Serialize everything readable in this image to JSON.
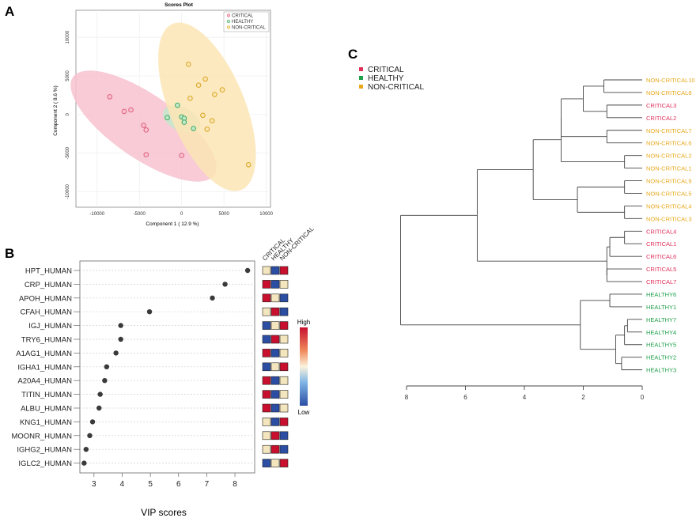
{
  "panel_labels": {
    "a": "A",
    "b": "B",
    "c": "C"
  },
  "chart_data": [
    {
      "panel": "A",
      "type": "scatter",
      "title": "Scores Plot",
      "xlabel": "Component 1 ( 12.9 %)",
      "ylabel": "Component 2 ( 8.6 %)",
      "xlim": [
        -12500,
        10500
      ],
      "ylim": [
        -12000,
        13500
      ],
      "xticks": [
        -10000,
        -5000,
        0,
        5000,
        10000
      ],
      "xtick_labels": [
        "-10000",
        "-5000",
        "0",
        "5000",
        "10000"
      ],
      "yticks": [
        -10000,
        -5000,
        0,
        5000,
        10000
      ],
      "ytick_labels": [
        "-10000",
        "-5000",
        "0",
        "5000",
        "10000"
      ],
      "legend_position": "top-right",
      "series": [
        {
          "name": "CRITICAL",
          "color": "#e0607e",
          "fill": "#f7c2cf",
          "points": [
            [
              -8500,
              2300
            ],
            [
              -6000,
              600
            ],
            [
              -6800,
              400
            ],
            [
              -4500,
              -1400
            ],
            [
              -4200,
              -2000
            ],
            [
              -4200,
              -5200
            ],
            [
              0,
              -5300
            ]
          ],
          "ellipse": {
            "center": [
              -4500,
              -1500
            ],
            "semi_major": 10500,
            "semi_minor": 4000,
            "angle_deg": -38
          }
        },
        {
          "name": "HEALTHY",
          "color": "#3daa5e",
          "fill": "#c4e8cd",
          "points": [
            [
              -500,
              1200
            ],
            [
              -1700,
              -400
            ],
            [
              0,
              -300
            ],
            [
              300,
              -500
            ],
            [
              300,
              -1000
            ],
            [
              1400,
              -1800
            ]
          ],
          "ellipse": {
            "center": [
              0,
              -600
            ],
            "semi_major": 2400,
            "semi_minor": 1500,
            "angle_deg": -30
          }
        },
        {
          "name": "NON-CRITICAL",
          "color": "#d9a520",
          "fill": "#fbe5b4",
          "points": [
            [
              800,
              6500
            ],
            [
              2800,
              4600
            ],
            [
              2000,
              3800
            ],
            [
              4800,
              3200
            ],
            [
              3900,
              2600
            ],
            [
              1000,
              2100
            ],
            [
              3600,
              -800
            ],
            [
              2500,
              -100
            ],
            [
              3000,
              -1900
            ],
            [
              7900,
              -6500
            ]
          ],
          "ellipse": {
            "center": [
              3000,
              1000
            ],
            "semi_major": 11500,
            "semi_minor": 4500,
            "angle_deg": -70
          }
        }
      ]
    },
    {
      "panel": "B",
      "type": "scatter",
      "xlabel": "VIP scores",
      "xlim": [
        2.5,
        8.7
      ],
      "xticks": [
        3,
        4,
        5,
        6,
        7,
        8
      ],
      "xtick_labels": [
        "3",
        "4",
        "5",
        "6",
        "7",
        "8"
      ],
      "categories": [
        "HPT_HUMAN",
        "CRP_HUMAN",
        "APOH_HUMAN",
        "CFAH_HUMAN",
        "IGJ_HUMAN",
        "TRY6_HUMAN",
        "A1AG1_HUMAN",
        "IGHA1_HUMAN",
        "A20A4_HUMAN",
        "TITIN_HUMAN",
        "ALBU_HUMAN",
        "KNG1_HUMAN",
        "MOONR_HUMAN",
        "IGHG2_HUMAN",
        "IGLC2_HUMAN"
      ],
      "values": [
        8.45,
        7.65,
        7.2,
        4.97,
        3.95,
        3.95,
        3.78,
        3.45,
        3.38,
        3.22,
        3.18,
        2.95,
        2.85,
        2.72,
        2.65
      ],
      "heatmap_columns": [
        "CRITICAL",
        "HEALTHY",
        "NON-CRITICAL"
      ],
      "heatmap": [
        [
          "mid",
          "low",
          "high"
        ],
        [
          "high",
          "low",
          "mid"
        ],
        [
          "high",
          "mid",
          "low"
        ],
        [
          "mid",
          "high",
          "low"
        ],
        [
          "low",
          "mid",
          "high"
        ],
        [
          "low",
          "high",
          "mid"
        ],
        [
          "high",
          "low",
          "mid"
        ],
        [
          "low",
          "mid",
          "high"
        ],
        [
          "high",
          "low",
          "mid"
        ],
        [
          "high",
          "low",
          "mid"
        ],
        [
          "high",
          "low",
          "mid"
        ],
        [
          "mid",
          "low",
          "high"
        ],
        [
          "mid",
          "high",
          "low"
        ],
        [
          "mid",
          "high",
          "low"
        ],
        [
          "low",
          "mid",
          "high"
        ]
      ],
      "colorscale": {
        "title": "High",
        "low_label": "Low",
        "low": "#2b4ea3",
        "mid": "#f3e5bd",
        "high": "#c8102e"
      }
    },
    {
      "panel": "C",
      "type": "dendrogram",
      "legend": [
        {
          "name": "CRITICAL",
          "color": "#e0305a"
        },
        {
          "name": "HEALTHY",
          "color": "#1ea04a"
        },
        {
          "name": "NON-CRITICAL",
          "color": "#e8a81c"
        }
      ],
      "xlim": [
        8,
        0
      ],
      "xticks": [
        8,
        6,
        4,
        2,
        0
      ],
      "xtick_labels": [
        "8",
        "6",
        "4",
        "2",
        "0"
      ],
      "leaves": [
        {
          "label": "NON-CRITICAL10",
          "group": "NON-CRITICAL"
        },
        {
          "label": "NON-CRITICAL8",
          "group": "NON-CRITICAL"
        },
        {
          "label": "CRITICAL3",
          "group": "CRITICAL"
        },
        {
          "label": "CRITICAL2",
          "group": "CRITICAL"
        },
        {
          "label": "NON-CRITICAL7",
          "group": "NON-CRITICAL"
        },
        {
          "label": "NON-CRITICAL6",
          "group": "NON-CRITICAL"
        },
        {
          "label": "NON-CRITICAL2",
          "group": "NON-CRITICAL"
        },
        {
          "label": "NON-CRITICAL1",
          "group": "NON-CRITICAL"
        },
        {
          "label": "NON-CRITICAL9",
          "group": "NON-CRITICAL"
        },
        {
          "label": "NON-CRITICAL5",
          "group": "NON-CRITICAL"
        },
        {
          "label": "NON-CRITICAL4",
          "group": "NON-CRITICAL"
        },
        {
          "label": "NON-CRITICAL3",
          "group": "NON-CRITICAL"
        },
        {
          "label": "CRITICAL4",
          "group": "CRITICAL"
        },
        {
          "label": "CRITICAL1",
          "group": "CRITICAL"
        },
        {
          "label": "CRITICAL6",
          "group": "CRITICAL"
        },
        {
          "label": "CRITICAL5",
          "group": "CRITICAL"
        },
        {
          "label": "CRITICAL7",
          "group": "CRITICAL"
        },
        {
          "label": "HEALTHY6",
          "group": "HEALTHY"
        },
        {
          "label": "HEALTHY1",
          "group": "HEALTHY"
        },
        {
          "label": "HEALTHY7",
          "group": "HEALTHY"
        },
        {
          "label": "HEALTHY4",
          "group": "HEALTHY"
        },
        {
          "label": "HEALTHY5",
          "group": "HEALTHY"
        },
        {
          "label": "HEALTHY2",
          "group": "HEALTHY"
        },
        {
          "label": "HEALTHY3",
          "group": "HEALTHY"
        }
      ],
      "merges": [
        {
          "id": "n1",
          "children": [
            "NON-CRITICAL10",
            "NON-CRITICAL8"
          ],
          "height": 1.3
        },
        {
          "id": "n2",
          "children": [
            "CRITICAL3",
            "CRITICAL2"
          ],
          "height": 1.2
        },
        {
          "id": "n3",
          "children": [
            "n1",
            "n2"
          ],
          "height": 2.0
        },
        {
          "id": "n4",
          "children": [
            "NON-CRITICAL7",
            "NON-CRITICAL6"
          ],
          "height": 1.2
        },
        {
          "id": "n5",
          "children": [
            "n3",
            "n4"
          ],
          "height": 2.75
        },
        {
          "id": "n6",
          "children": [
            "NON-CRITICAL2",
            "NON-CRITICAL1"
          ],
          "height": 0.6
        },
        {
          "id": "n7",
          "children": [
            "n5",
            "n6"
          ],
          "height": 2.75
        },
        {
          "id": "n8",
          "children": [
            "NON-CRITICAL9",
            "NON-CRITICAL5"
          ],
          "height": 0.6
        },
        {
          "id": "n9",
          "children": [
            "NON-CRITICAL4",
            "NON-CRITICAL3"
          ],
          "height": 0.6
        },
        {
          "id": "n10",
          "children": [
            "n8",
            "n9"
          ],
          "height": 2.2
        },
        {
          "id": "n11",
          "children": [
            "n10",
            "n7"
          ],
          "height": 3.7
        },
        {
          "id": "n12",
          "children": [
            "CRITICAL4",
            "CRITICAL1"
          ],
          "height": 0.6
        },
        {
          "id": "n13",
          "children": [
            "n12",
            "CRITICAL6"
          ],
          "height": 1.1
        },
        {
          "id": "n14",
          "children": [
            "CRITICAL5",
            "CRITICAL7"
          ],
          "height": 1.2
        },
        {
          "id": "n15",
          "children": [
            "n13",
            "n14"
          ],
          "height": 1.2
        },
        {
          "id": "n16",
          "children": [
            "n11",
            "n15"
          ],
          "height": 5.6
        },
        {
          "id": "n17",
          "children": [
            "HEALTHY6",
            "HEALTHY1"
          ],
          "height": 1.1
        },
        {
          "id": "n18",
          "children": [
            "HEALTHY7",
            "HEALTHY4"
          ],
          "height": 0.5
        },
        {
          "id": "n19",
          "children": [
            "n18",
            "HEALTHY5"
          ],
          "height": 0.6
        },
        {
          "id": "n20",
          "children": [
            "HEALTHY2",
            "HEALTHY3"
          ],
          "height": 0.7
        },
        {
          "id": "n21",
          "children": [
            "n19",
            "n20"
          ],
          "height": 0.9
        },
        {
          "id": "n22",
          "children": [
            "n17",
            "n21"
          ],
          "height": 2.1
        },
        {
          "id": "n23",
          "children": [
            "n16",
            "n22"
          ],
          "height": 8.2
        }
      ]
    }
  ]
}
